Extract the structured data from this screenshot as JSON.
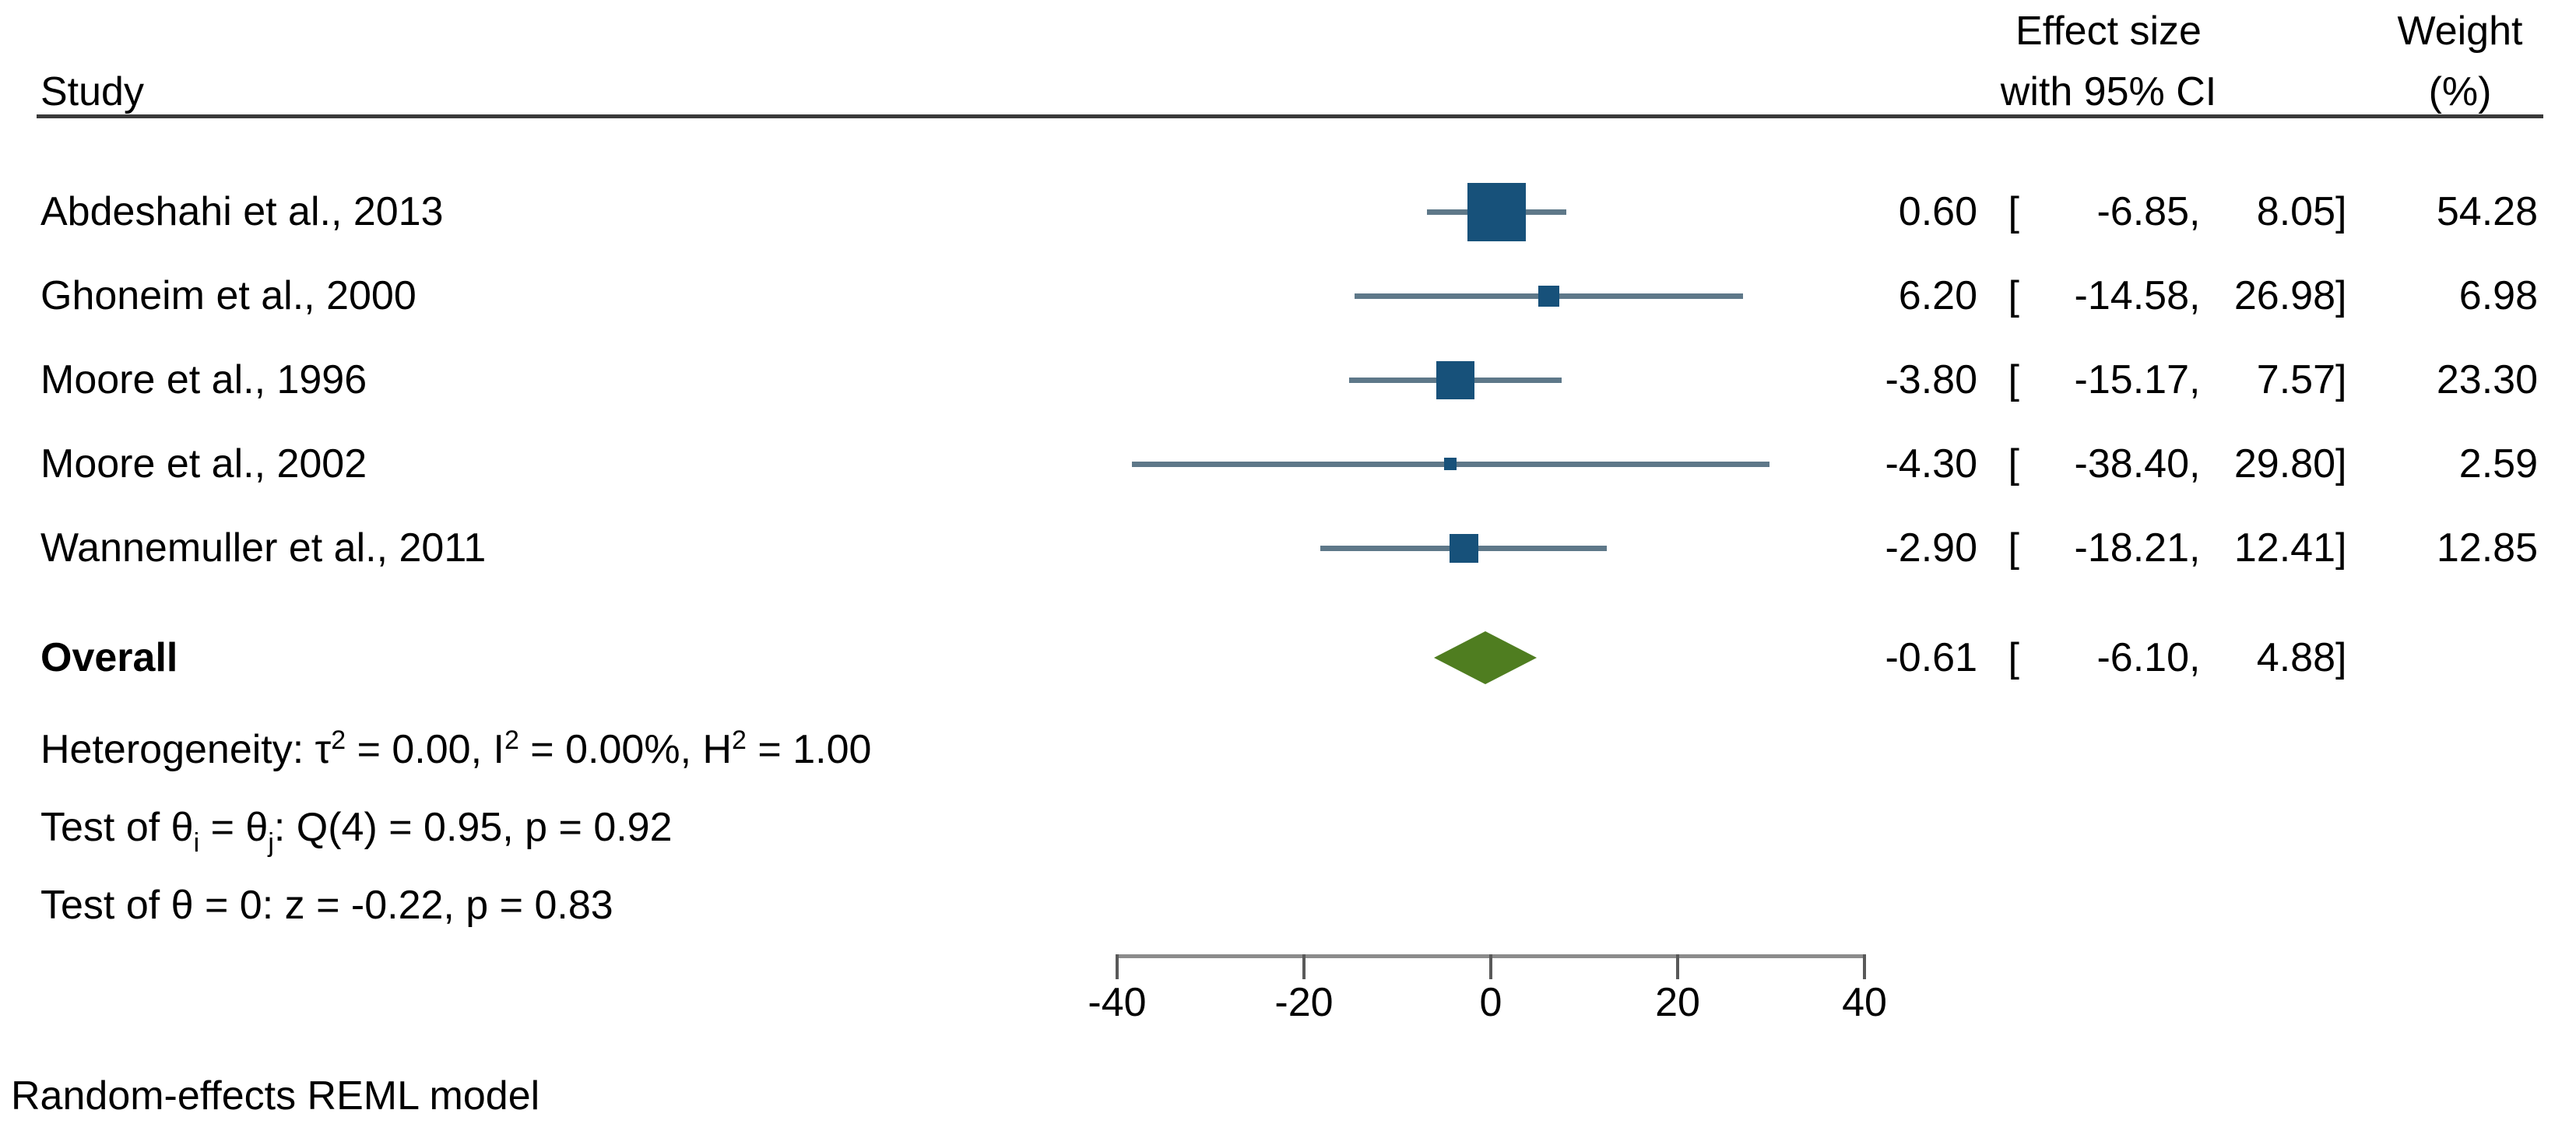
{
  "header": {
    "study_label": "Study",
    "effect_col_line1": "Effect size",
    "effect_col_line2": "with 95% CI",
    "weight_col_line1": "Weight",
    "weight_col_line2": "(%)"
  },
  "format": {
    "open_bracket": "[",
    "separator": ",",
    "close_bracket": "]"
  },
  "chart_data": {
    "type": "forest",
    "x_axis": {
      "ticks": [
        -40,
        -20,
        0,
        20,
        40
      ],
      "tick_labels": [
        "-40",
        "-20",
        "0",
        "20",
        "40"
      ],
      "range": [
        -40,
        40
      ]
    },
    "colors": {
      "square": "#17517a",
      "ci_line": "#5e7889",
      "diamond": "#4f7d20"
    },
    "studies": [
      {
        "label": "Abdeshahi et al., 2013",
        "effect": 0.6,
        "ci_lower": -6.85,
        "ci_upper": 8.05,
        "weight": 54.28,
        "est_text": "0.60",
        "lo_text": "-6.85",
        "hi_text": "8.05",
        "weight_text": "54.28"
      },
      {
        "label": "Ghoneim et al., 2000",
        "effect": 6.2,
        "ci_lower": -14.58,
        "ci_upper": 26.98,
        "weight": 6.98,
        "est_text": "6.20",
        "lo_text": "-14.58",
        "hi_text": "26.98",
        "weight_text": "6.98"
      },
      {
        "label": "Moore et al., 1996",
        "effect": -3.8,
        "ci_lower": -15.17,
        "ci_upper": 7.57,
        "weight": 23.3,
        "est_text": "-3.80",
        "lo_text": "-15.17",
        "hi_text": "7.57",
        "weight_text": "23.30"
      },
      {
        "label": "Moore et al., 2002",
        "effect": -4.3,
        "ci_lower": -38.4,
        "ci_upper": 29.8,
        "weight": 2.59,
        "est_text": "-4.30",
        "lo_text": "-38.40",
        "hi_text": "29.80",
        "weight_text": "2.59"
      },
      {
        "label": "Wannemuller et al., 2011",
        "effect": -2.9,
        "ci_lower": -18.21,
        "ci_upper": 12.41,
        "weight": 12.85,
        "est_text": "-2.90",
        "lo_text": "-18.21",
        "hi_text": "12.41",
        "weight_text": "12.85"
      }
    ],
    "overall": {
      "label": "Overall",
      "effect": -0.61,
      "ci_lower": -6.1,
      "ci_upper": 4.88,
      "est_text": "-0.61",
      "lo_text": "-6.10",
      "hi_text": "4.88"
    }
  },
  "stats": {
    "heterogeneity": {
      "prefix": "Heterogeneity: τ",
      "sup1": "2",
      "mid1": " = 0.00, I",
      "sup2": "2",
      "mid2": " = 0.00%, H",
      "sup3": "2",
      "suffix": " = 1.00"
    },
    "test_theta_ij": {
      "prefix": "Test of θ",
      "sub1": "i",
      "mid": " = θ",
      "sub2": "j",
      "suffix": ": Q(4) = 0.95, p = 0.92"
    },
    "test_theta_zero": "Test of θ = 0: z = -0.22, p = 0.83"
  },
  "footer": {
    "model_note": "Random-effects REML model"
  }
}
